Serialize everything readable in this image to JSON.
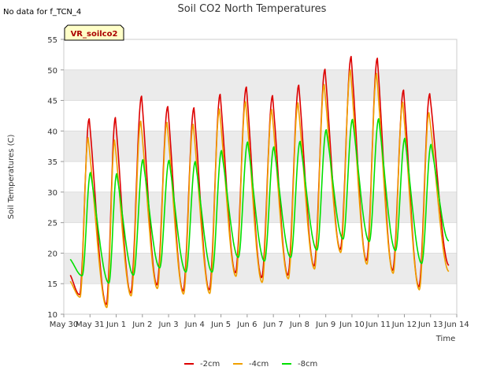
{
  "corner_note": "No data for f_TCN_4",
  "chart_data": {
    "type": "line",
    "title": "Soil CO2 North Temperatures",
    "xlabel": "Time",
    "ylabel": "Soil Temperatures (C)",
    "site_label": "VR_soilco2",
    "ylim": [
      10,
      55
    ],
    "yticks": [
      10,
      15,
      20,
      25,
      30,
      35,
      40,
      45,
      50,
      55
    ],
    "xlim": [
      0,
      15
    ],
    "xticks": [
      0,
      1,
      2,
      3,
      4,
      5,
      6,
      7,
      8,
      9,
      10,
      11,
      12,
      13,
      14,
      15
    ],
    "xtick_labels": [
      "May 30",
      "May 31",
      "Jun 1",
      "Jun 2",
      "Jun 3",
      "Jun 4",
      "Jun 5",
      "Jun 6",
      "Jun 7",
      "Jun 8",
      "Jun 9",
      "Jun 10",
      "Jun 11",
      "Jun 12",
      "Jun 13",
      "Jun 14"
    ],
    "x_unit": "days since May 30 00:00",
    "grid": true,
    "band_fill": "#ebebeb",
    "legend_position": "bottom-center",
    "series": [
      {
        "name": "-2cm",
        "color": "#dd0000",
        "start_day": 0.25,
        "end_day": 14.7,
        "min_times": [
          0.6,
          1.62,
          2.55,
          3.55,
          4.55,
          5.55,
          6.55,
          7.55,
          8.55,
          9.55,
          10.55,
          11.55,
          12.55,
          13.55
        ],
        "min_values": [
          13.2,
          11.6,
          13.5,
          14.8,
          13.8,
          14.0,
          16.8,
          16.0,
          16.4,
          17.9,
          20.6,
          18.8,
          17.2,
          14.5
        ],
        "max_times": [
          0.97,
          1.97,
          2.97,
          3.97,
          4.97,
          5.97,
          6.97,
          7.97,
          8.97,
          9.97,
          10.97,
          11.97,
          12.97,
          13.97
        ],
        "max_values": [
          42.0,
          42.2,
          45.7,
          44.0,
          43.8,
          46.0,
          47.2,
          45.8,
          47.5,
          50.1,
          52.2,
          51.9,
          46.7,
          46.1
        ],
        "start_value": 16.4,
        "end_value": 18.0
      },
      {
        "name": "-4cm",
        "color": "#f0a000",
        "start_day": 0.25,
        "end_day": 14.7,
        "min_times": [
          0.62,
          1.64,
          2.57,
          3.57,
          4.57,
          5.57,
          6.57,
          7.57,
          8.57,
          9.57,
          10.57,
          11.57,
          12.57,
          13.57
        ],
        "min_values": [
          12.8,
          11.1,
          13.0,
          14.2,
          13.3,
          13.4,
          16.2,
          15.2,
          15.8,
          17.4,
          20.1,
          18.2,
          16.7,
          14.0
        ],
        "max_times": [
          0.93,
          1.94,
          2.94,
          3.94,
          4.94,
          5.94,
          6.94,
          7.94,
          8.94,
          9.94,
          10.94,
          11.94,
          12.94,
          13.94
        ],
        "max_values": [
          38.9,
          38.5,
          41.6,
          41.4,
          41.1,
          43.6,
          44.8,
          43.5,
          44.6,
          47.6,
          50.0,
          49.4,
          44.7,
          43.0
        ],
        "start_value": 15.4,
        "end_value": 17.0
      },
      {
        "name": "-8cm",
        "color": "#00e000",
        "start_day": 0.25,
        "end_day": 14.7,
        "min_times": [
          0.7,
          1.72,
          2.66,
          3.66,
          4.66,
          5.66,
          6.66,
          7.66,
          8.66,
          9.66,
          10.66,
          11.66,
          12.66,
          13.66
        ],
        "min_values": [
          16.3,
          15.1,
          16.4,
          17.6,
          16.9,
          16.9,
          19.3,
          18.7,
          19.3,
          20.5,
          22.3,
          21.9,
          20.4,
          18.3
        ],
        "max_times": [
          1.02,
          2.02,
          3.02,
          4.02,
          5.02,
          6.02,
          7.02,
          8.02,
          9.02,
          10.02,
          11.02,
          12.02,
          13.02,
          14.02
        ],
        "max_values": [
          33.2,
          33.0,
          35.3,
          35.2,
          35.0,
          36.8,
          38.2,
          37.4,
          38.3,
          40.2,
          41.9,
          42.0,
          38.8,
          37.8
        ],
        "start_value": 19.0,
        "end_value": 22.0
      }
    ]
  }
}
